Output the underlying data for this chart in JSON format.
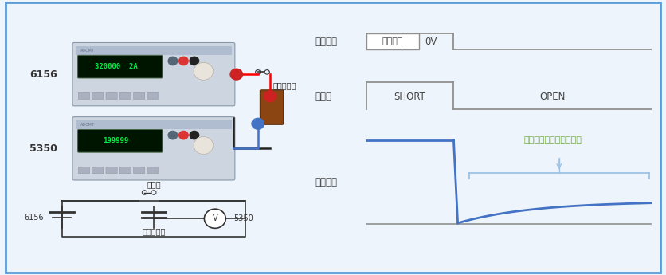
{
  "bg_color": "#eef4fb",
  "border_color": "#5b9bd5",
  "label_6156": "6156",
  "label_5350": "5350",
  "label_condenser": "コンデンサ",
  "label_relay_circ": "リレー",
  "inkatsu_label": "印可電圧",
  "teikaku_label": "定格電圧",
  "zero_label": "0V",
  "relay_label": "リレー",
  "short_label": "SHORT",
  "open_label": "OPEN",
  "sokutei_label": "測定電圧",
  "annotation_label": "誘電吸収による電圧上昇",
  "line_color_gray": "#909090",
  "line_color_blue": "#4472c4",
  "line_color_light_blue": "#9dc3e6",
  "annotation_color": "#70ad47"
}
